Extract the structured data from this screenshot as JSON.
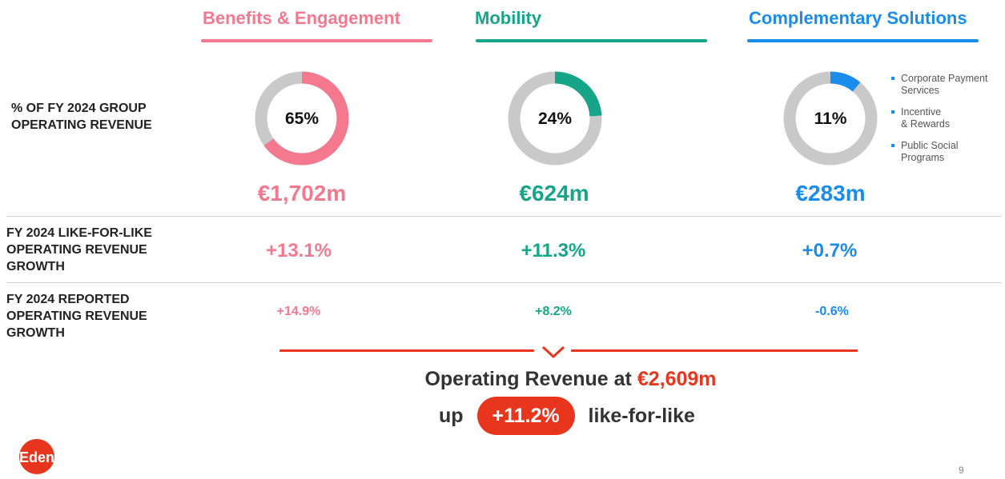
{
  "colors": {
    "benefits": "#f4798f",
    "mobility": "#17a58a",
    "complementary": "#1a8cec",
    "track": "#c9c9c9",
    "accent": "#e8361e"
  },
  "columns": [
    {
      "title": "Benefits & Engagement",
      "percent_label": "65%",
      "value": "€1,702m",
      "lfl": "+13.1%",
      "reported": "+14.9%"
    },
    {
      "title": "Mobility",
      "percent_label": "24%",
      "value": "€624m",
      "lfl": "+11.3%",
      "reported": "+8.2%"
    },
    {
      "title": "Complementary Solutions",
      "percent_label": "11%",
      "value": "€283m",
      "lfl": "+0.7%",
      "reported": "-0.6%"
    }
  ],
  "row_labels": {
    "share": [
      "% OF FY 2024 GROUP",
      "OPERATING REVENUE"
    ],
    "lfl": [
      "FY 2024 LIKE-FOR-LIKE",
      "OPERATING REVENUE",
      "GROWTH"
    ],
    "reported": [
      "FY 2024 REPORTED",
      "OPERATING REVENUE",
      "GROWTH"
    ]
  },
  "legend": [
    [
      "Corporate Payment",
      "Services"
    ],
    [
      "Incentive",
      "& Rewards"
    ],
    [
      "Public Social",
      "Programs"
    ]
  ],
  "summary": {
    "line1_prefix": "Operating Revenue at ",
    "line1_value": "€2,609m",
    "line2_prefix": "up",
    "line2_badge": "+11.2%",
    "line2_suffix": "like-for-like"
  },
  "logo_text": "Edenred",
  "page_number": "9",
  "chart_data": {
    "type": "pie",
    "categories": [
      "Benefits & Engagement",
      "Mobility",
      "Complementary Solutions"
    ],
    "values": [
      65,
      24,
      11
    ],
    "unit": "%"
  }
}
